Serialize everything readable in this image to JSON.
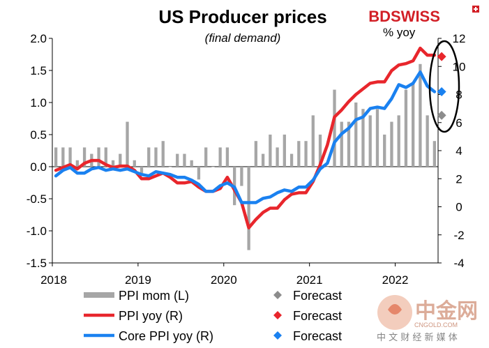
{
  "chart_data": {
    "type": "bar+line",
    "title": "US Producer prices",
    "subtitle": "(final demand)",
    "right_axis_label": "% yoy",
    "x_tick_labels": [
      "2018",
      "2019",
      "2020",
      "2021",
      "2022"
    ],
    "left_axis": {
      "min": -1.5,
      "max": 2.0,
      "ticks": [
        "2.0",
        "1.5",
        "1.0",
        "0.5",
        "0.0",
        "-0.5",
        "-1.0",
        "-1.5"
      ]
    },
    "right_axis": {
      "min": -4,
      "max": 12,
      "ticks": [
        "12",
        "10",
        "8",
        "6",
        "4",
        "2",
        "0",
        "-2",
        "-4"
      ]
    },
    "months": 54,
    "series": [
      {
        "name": "PPI mom (L)",
        "axis": "left",
        "type": "bar",
        "color": "#a6a6a6",
        "values": [
          0.3,
          0.3,
          0.3,
          0.1,
          0.3,
          0.2,
          0.3,
          0.3,
          0.1,
          0.2,
          0.7,
          0.1,
          -0.1,
          0.3,
          0.3,
          0.4,
          0.0,
          0.2,
          0.2,
          0.1,
          -0.2,
          0.3,
          0.0,
          0.3,
          0.3,
          -0.6,
          -0.3,
          -1.3,
          0.4,
          0.2,
          0.5,
          0.3,
          0.5,
          0.2,
          0.4,
          0.4,
          0.8,
          0.5,
          0.0,
          1.2,
          0.7,
          0.7,
          1.0,
          0.9,
          0.8,
          0.9,
          0.5,
          0.7,
          0.8,
          1.2,
          1.3,
          1.6,
          0.8,
          0.4
        ]
      },
      {
        "name": "PPI yoy (R)",
        "axis": "right",
        "type": "line",
        "color": "#e8262c",
        "values": [
          2.6,
          2.8,
          3.0,
          2.7,
          3.1,
          3.3,
          3.3,
          3.0,
          2.8,
          2.9,
          2.9,
          2.6,
          2.0,
          2.0,
          2.2,
          2.4,
          2.1,
          1.7,
          1.7,
          1.8,
          1.4,
          1.1,
          1.1,
          1.3,
          2.1,
          1.2,
          0.3,
          -1.5,
          -0.9,
          -0.4,
          -0.1,
          -0.1,
          0.5,
          0.9,
          1.0,
          1.0,
          1.8,
          3.0,
          4.4,
          6.4,
          6.9,
          7.5,
          8.0,
          8.4,
          8.8,
          8.9,
          8.9,
          9.7,
          10.1,
          10.2,
          10.4,
          11.3,
          10.8,
          10.8
        ]
      },
      {
        "name": "Core PPI yoy (R)",
        "axis": "right",
        "type": "line",
        "color": "#1a81f0",
        "values": [
          2.2,
          2.6,
          2.8,
          2.4,
          2.4,
          2.7,
          2.8,
          2.6,
          2.7,
          2.6,
          2.7,
          2.5,
          2.3,
          2.2,
          2.5,
          2.4,
          2.3,
          2.1,
          2.1,
          1.9,
          1.6,
          1.1,
          1.1,
          1.5,
          1.7,
          1.4,
          0.3,
          0.3,
          0.3,
          0.6,
          0.7,
          1.0,
          1.2,
          1.1,
          1.4,
          1.4,
          1.9,
          2.7,
          3.1,
          4.6,
          5.2,
          5.6,
          6.2,
          6.4,
          7.0,
          7.1,
          7.0,
          7.7,
          8.7,
          8.5,
          8.8,
          9.6,
          8.6,
          8.2
        ]
      }
    ],
    "forecasts": [
      {
        "name": "Forecast",
        "for": "PPI mom (L)",
        "color": "#8c8c8c",
        "value": 0.8
      },
      {
        "name": "Forecast",
        "for": "PPI yoy (R)",
        "color": "#e8262c",
        "value": 10.7
      },
      {
        "name": "Forecast",
        "for": "Core PPI yoy (R)",
        "color": "#1a81f0",
        "value": 8.2
      }
    ],
    "legend": [
      {
        "label": "PPI mom (L)",
        "marker": "bar",
        "color": "#a6a6a6"
      },
      {
        "label": "PPI yoy (R)",
        "marker": "line",
        "color": "#e8262c"
      },
      {
        "label": "Core PPI yoy (R)",
        "marker": "line",
        "color": "#1a81f0"
      }
    ],
    "forecast_legend": [
      {
        "label": "Forecast",
        "color": "#8c8c8c"
      },
      {
        "label": "Forecast",
        "color": "#e8262c"
      },
      {
        "label": "Forecast",
        "color": "#1a81f0"
      }
    ]
  },
  "branding": {
    "bd": "BD",
    "swiss": "SWISS"
  },
  "watermark": {
    "cn": "中金网",
    "url": "CNGOLD.COM",
    "tagline": "中 文 财 经 新 媒 体"
  }
}
